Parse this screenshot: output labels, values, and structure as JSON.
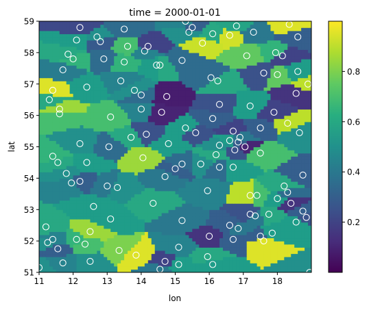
{
  "figure": {
    "title": "time = 2000-01-01"
  },
  "chart_data": {
    "type": "heatmap",
    "title": "time = 2000-01-01",
    "xlabel": "lon",
    "ylabel": "lat",
    "xlim": [
      11,
      19
    ],
    "ylim": [
      51,
      59
    ],
    "x_ticks": [
      {
        "v": 11,
        "label": "11"
      },
      {
        "v": 12,
        "label": "12"
      },
      {
        "v": 13,
        "label": "13"
      },
      {
        "v": 14,
        "label": "14"
      },
      {
        "v": 15,
        "label": "15"
      },
      {
        "v": 16,
        "label": "16"
      },
      {
        "v": 17,
        "label": "17"
      },
      {
        "v": 18,
        "label": "18"
      }
    ],
    "y_ticks": [
      {
        "v": 51,
        "label": "51"
      },
      {
        "v": 52,
        "label": "52"
      },
      {
        "v": 53,
        "label": "53"
      },
      {
        "v": 54,
        "label": "54"
      },
      {
        "v": 55,
        "label": "55"
      },
      {
        "v": 56,
        "label": "56"
      },
      {
        "v": 57,
        "label": "57"
      },
      {
        "v": 58,
        "label": "58"
      },
      {
        "v": 59,
        "label": "59"
      }
    ],
    "colorbar": {
      "colormap": "viridis",
      "range": [
        0.0,
        1.0
      ],
      "ticks": [
        {
          "v": 0.2,
          "label": "0.2"
        },
        {
          "v": 0.4,
          "label": "0.4"
        },
        {
          "v": 0.6,
          "label": "0.6"
        },
        {
          "v": 0.8,
          "label": "0.8"
        }
      ]
    },
    "grid": false,
    "stations": [
      [
        12.2,
        58.8,
        0.22
      ],
      [
        13.5,
        58.75,
        0.35
      ],
      [
        15.3,
        59.0,
        0.45
      ],
      [
        15.5,
        58.8,
        0.3
      ],
      [
        15.4,
        58.65,
        0.5
      ],
      [
        16.1,
        58.6,
        0.6
      ],
      [
        16.8,
        58.85,
        0.58
      ],
      [
        17.3,
        58.65,
        0.4
      ],
      [
        18.35,
        58.9,
        0.95
      ],
      [
        12.1,
        58.4,
        0.55
      ],
      [
        12.7,
        58.5,
        0.5
      ],
      [
        12.8,
        58.35,
        0.28
      ],
      [
        14.2,
        58.2,
        0.2
      ],
      [
        14.1,
        58.05,
        0.45
      ],
      [
        13.6,
        58.2,
        0.7
      ],
      [
        15.8,
        58.3,
        0.92
      ],
      [
        16.6,
        58.55,
        0.93
      ],
      [
        11.85,
        57.95,
        0.6
      ],
      [
        12.0,
        57.8,
        0.65
      ],
      [
        12.9,
        57.8,
        0.35
      ],
      [
        14.45,
        57.6,
        0.55
      ],
      [
        14.55,
        57.6,
        0.6
      ],
      [
        15.2,
        57.75,
        0.35
      ],
      [
        17.1,
        57.9,
        0.75
      ],
      [
        17.95,
        58.0,
        0.65
      ],
      [
        18.15,
        57.9,
        0.2
      ],
      [
        18.6,
        58.5,
        0.3
      ],
      [
        11.7,
        57.45,
        0.42
      ],
      [
        13.5,
        57.7,
        0.65
      ],
      [
        17.6,
        57.35,
        0.25
      ],
      [
        18.0,
        57.3,
        0.75
      ],
      [
        18.6,
        57.4,
        0.55
      ],
      [
        11.4,
        56.8,
        0.95
      ],
      [
        12.4,
        56.9,
        0.55
      ],
      [
        13.4,
        57.1,
        0.45
      ],
      [
        13.8,
        56.8,
        0.5
      ],
      [
        14.0,
        56.65,
        0.35
      ],
      [
        14.75,
        56.6,
        0.08
      ],
      [
        16.05,
        57.2,
        0.35
      ],
      [
        16.25,
        57.1,
        0.6
      ],
      [
        18.9,
        57.0,
        0.9
      ],
      [
        18.55,
        56.7,
        0.15
      ],
      [
        11.3,
        56.5,
        0.6
      ],
      [
        11.6,
        56.2,
        0.85
      ],
      [
        11.6,
        56.05,
        0.7
      ],
      [
        14.0,
        56.2,
        0.45
      ],
      [
        14.6,
        56.1,
        0.1
      ],
      [
        13.1,
        55.95,
        0.7
      ],
      [
        17.2,
        56.3,
        0.55
      ],
      [
        17.9,
        56.1,
        0.2
      ],
      [
        16.3,
        56.35,
        0.25
      ],
      [
        16.1,
        55.9,
        0.3
      ],
      [
        15.3,
        55.6,
        0.55
      ],
      [
        15.6,
        55.45,
        0.25
      ],
      [
        14.15,
        55.4,
        0.25
      ],
      [
        13.7,
        55.3,
        0.6
      ],
      [
        12.2,
        55.1,
        0.5
      ],
      [
        13.05,
        55.0,
        0.35
      ],
      [
        14.8,
        55.1,
        0.55
      ],
      [
        16.7,
        55.5,
        0.2
      ],
      [
        16.9,
        55.3,
        0.4
      ],
      [
        16.85,
        55.15,
        0.3
      ],
      [
        17.05,
        55.0,
        0.1
      ],
      [
        16.6,
        55.2,
        0.55
      ],
      [
        16.75,
        54.9,
        0.25
      ],
      [
        17.5,
        55.6,
        0.3
      ],
      [
        18.3,
        55.75,
        0.9
      ],
      [
        18.65,
        55.45,
        0.5
      ],
      [
        16.3,
        55.05,
        0.5
      ],
      [
        16.2,
        54.75,
        0.6
      ],
      [
        11.4,
        54.7,
        0.65
      ],
      [
        11.55,
        54.5,
        0.6
      ],
      [
        12.4,
        54.5,
        0.55
      ],
      [
        14.05,
        54.65,
        0.85
      ],
      [
        15.2,
        54.45,
        0.35
      ],
      [
        15.0,
        54.3,
        0.3
      ],
      [
        15.75,
        54.45,
        0.5
      ],
      [
        16.7,
        54.35,
        0.55
      ],
      [
        16.3,
        54.35,
        0.35
      ],
      [
        17.5,
        54.8,
        0.7
      ],
      [
        11.8,
        54.15,
        0.5
      ],
      [
        12.2,
        53.9,
        0.3
      ],
      [
        11.95,
        53.85,
        0.45
      ],
      [
        13.0,
        53.75,
        0.4
      ],
      [
        13.3,
        53.7,
        0.5
      ],
      [
        14.7,
        54.05,
        0.4
      ],
      [
        15.95,
        53.6,
        0.45
      ],
      [
        17.2,
        53.45,
        0.9
      ],
      [
        17.4,
        53.45,
        0.7
      ],
      [
        18.2,
        53.75,
        0.6
      ],
      [
        18.3,
        53.55,
        0.35
      ],
      [
        18.75,
        54.1,
        0.3
      ],
      [
        18.0,
        53.35,
        0.55
      ],
      [
        18.4,
        53.2,
        0.15
      ],
      [
        14.35,
        53.2,
        0.6
      ],
      [
        12.6,
        53.1,
        0.55
      ],
      [
        13.1,
        52.7,
        0.55
      ],
      [
        15.2,
        52.65,
        0.4
      ],
      [
        17.2,
        52.85,
        0.25
      ],
      [
        17.35,
        52.8,
        0.4
      ],
      [
        17.75,
        52.85,
        0.6
      ],
      [
        18.75,
        52.95,
        0.3
      ],
      [
        18.85,
        52.75,
        0.25
      ],
      [
        18.55,
        52.6,
        0.55
      ],
      [
        11.2,
        52.45,
        0.6
      ],
      [
        12.5,
        52.3,
        0.85
      ],
      [
        11.25,
        51.95,
        0.5
      ],
      [
        11.4,
        52.05,
        0.45
      ],
      [
        11.55,
        51.75,
        0.3
      ],
      [
        12.1,
        52.05,
        0.65
      ],
      [
        12.35,
        51.9,
        0.7
      ],
      [
        13.35,
        51.7,
        0.8
      ],
      [
        15.1,
        51.8,
        0.45
      ],
      [
        16.0,
        52.15,
        0.15
      ],
      [
        16.7,
        52.05,
        0.3
      ],
      [
        16.85,
        52.4,
        0.4
      ],
      [
        17.85,
        52.25,
        0.55
      ],
      [
        17.6,
        52.0,
        0.95
      ],
      [
        17.5,
        52.15,
        0.3
      ],
      [
        11.7,
        51.3,
        0.45
      ],
      [
        12.5,
        51.35,
        0.5
      ],
      [
        13.85,
        51.55,
        0.95
      ],
      [
        14.7,
        51.35,
        0.2
      ],
      [
        15.1,
        51.25,
        0.55
      ],
      [
        15.95,
        51.5,
        0.6
      ],
      [
        16.1,
        51.25,
        0.55
      ],
      [
        18.95,
        51.0,
        0.5
      ],
      [
        11.0,
        51.15,
        0.5
      ],
      [
        14.55,
        51.1,
        0.4
      ],
      [
        16.6,
        52.5,
        0.3
      ]
    ]
  }
}
